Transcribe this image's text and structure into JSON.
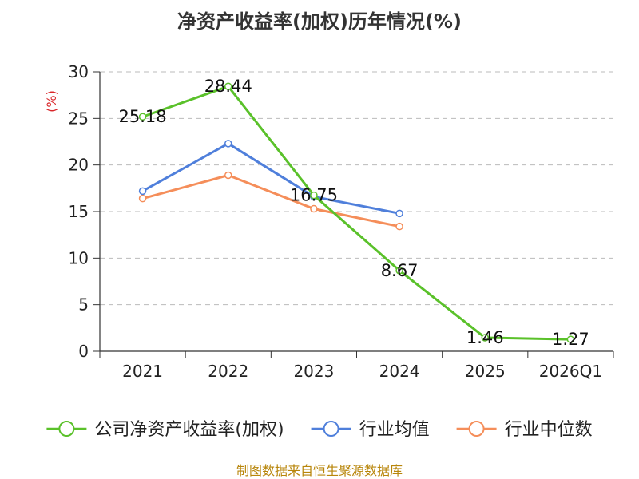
{
  "chart_data": {
    "type": "line",
    "title": "净资产收益率(加权)历年情况(%)",
    "ylabel": "(%)",
    "xlabel": "",
    "ylim": [
      0,
      30
    ],
    "yticks": [
      0,
      5,
      10,
      15,
      20,
      25,
      30
    ],
    "grid": true,
    "legend_position": "bottom",
    "categories": [
      "2021",
      "2022",
      "2023",
      "2024",
      "2025",
      "2026Q1"
    ],
    "series": [
      {
        "name": "公司净资产收益率(加权)",
        "color": "#5ac12a",
        "values": [
          25.18,
          28.44,
          16.75,
          8.67,
          1.46,
          1.27
        ],
        "labels": [
          "25.18",
          "28.44",
          "16.75",
          "8.67",
          "1.46",
          "1.27"
        ]
      },
      {
        "name": "行业均值",
        "color": "#4f7fdb",
        "values": [
          17.2,
          22.3,
          16.6,
          14.8,
          null,
          null
        ]
      },
      {
        "name": "行业中位数",
        "color": "#f58e5a",
        "values": [
          16.4,
          18.9,
          15.3,
          13.4,
          null,
          null
        ]
      }
    ]
  },
  "footer": "制图数据来自恒生聚源数据库"
}
